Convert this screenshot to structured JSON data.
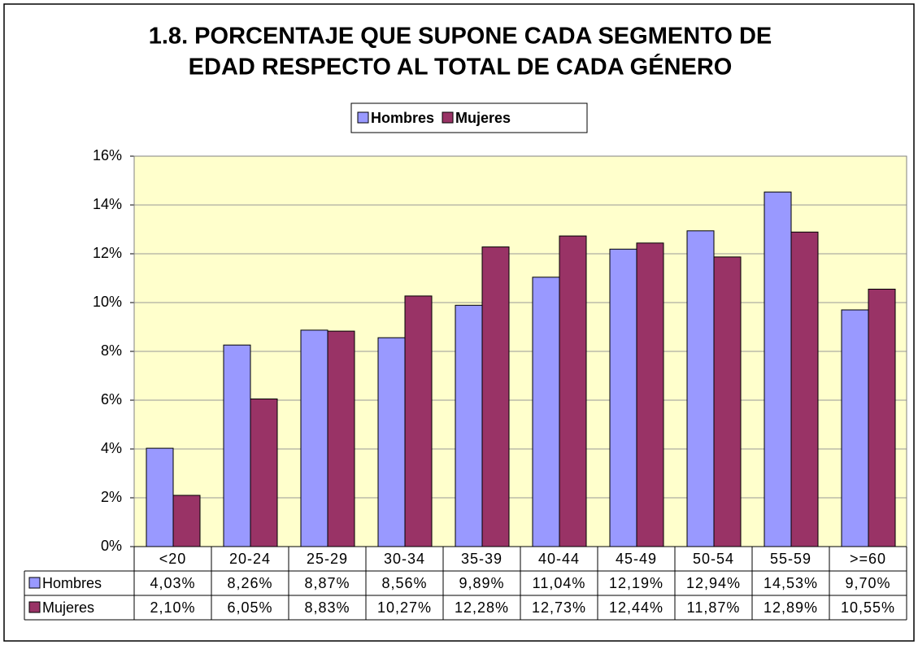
{
  "chart_data": {
    "type": "bar",
    "title": [
      "1.8. PORCENTAJE QUE SUPONE CADA SEGMENTO DE",
      "EDAD RESPECTO AL TOTAL DE CADA GÉNERO"
    ],
    "categories": [
      "<20",
      "20-24",
      "25-29",
      "30-34",
      "35-39",
      "40-44",
      "45-49",
      "50-54",
      "55-59",
      ">=60"
    ],
    "series": [
      {
        "name": "Hombres",
        "color": "#9999ff",
        "values": [
          4.03,
          8.26,
          8.87,
          8.56,
          9.89,
          11.04,
          12.19,
          12.94,
          14.53,
          9.7
        ],
        "value_labels": [
          "4,03%",
          "8,26%",
          "8,87%",
          "8,56%",
          "9,89%",
          "11,04%",
          "12,19%",
          "12,94%",
          "14,53%",
          "9,70%"
        ]
      },
      {
        "name": "Mujeres",
        "color": "#993366",
        "values": [
          2.1,
          6.05,
          8.83,
          10.27,
          12.28,
          12.73,
          12.44,
          11.87,
          12.89,
          10.55
        ],
        "value_labels": [
          "2,10%",
          "6,05%",
          "8,83%",
          "10,27%",
          "12,28%",
          "12,73%",
          "12,44%",
          "11,87%",
          "12,89%",
          "10,55%"
        ]
      }
    ],
    "ylim": [
      0,
      16
    ],
    "yticks": [
      {
        "value": 0,
        "label": "0%"
      },
      {
        "value": 2,
        "label": "2%"
      },
      {
        "value": 4,
        "label": "4%"
      },
      {
        "value": 6,
        "label": "6%"
      },
      {
        "value": 8,
        "label": "8%"
      },
      {
        "value": 10,
        "label": "10%"
      },
      {
        "value": 12,
        "label": "12%"
      },
      {
        "value": 14,
        "label": "14%"
      },
      {
        "value": 16,
        "label": "16%"
      }
    ],
    "grid": true,
    "legend": "top",
    "plot_background": "#ffffcc"
  }
}
